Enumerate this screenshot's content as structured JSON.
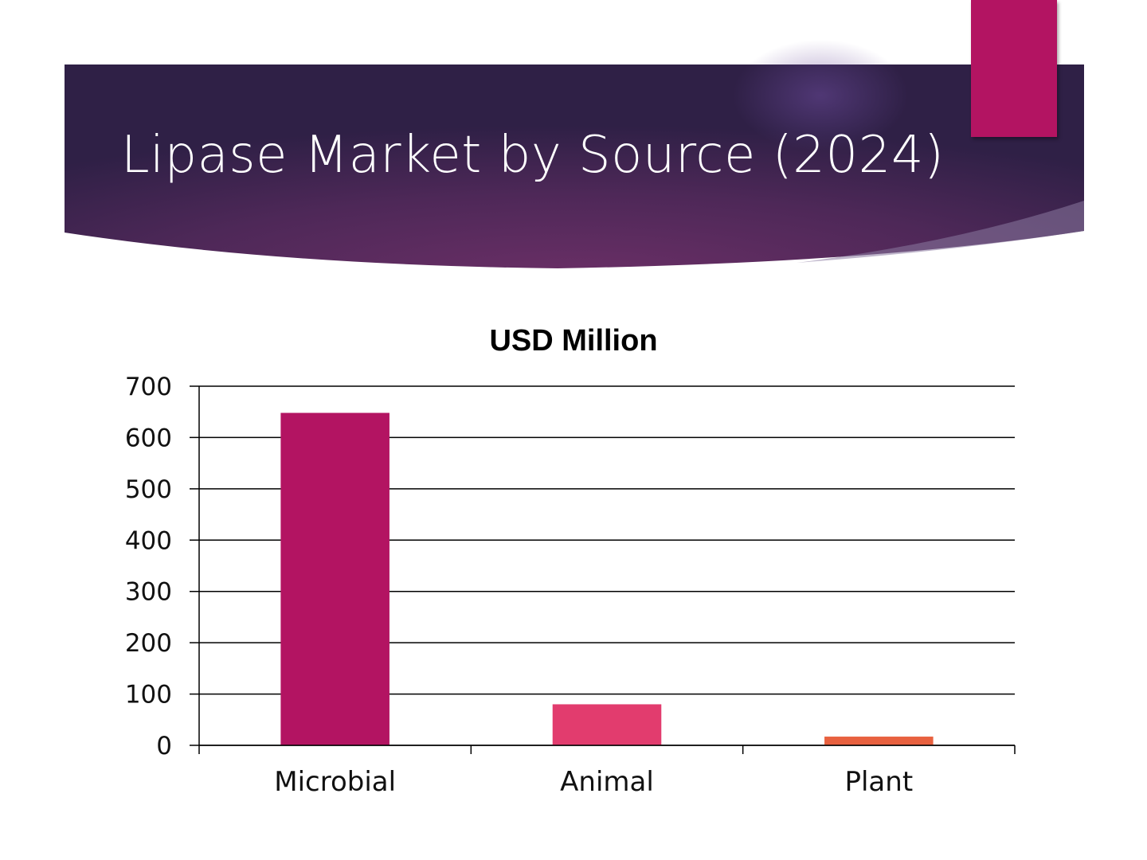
{
  "slide": {
    "title": "Lipase Market by Source (2024)",
    "band_colors": {
      "left": "#2f2046",
      "center": "#6a2f66",
      "right": "#342048"
    },
    "accent_color": "#b31462"
  },
  "chart_data": {
    "type": "bar",
    "title": "USD Million",
    "xlabel": "",
    "ylabel": "",
    "categories": [
      "Microbial",
      "Animal",
      "Plant"
    ],
    "values": [
      648,
      80,
      17
    ],
    "bar_colors": [
      "#b31462",
      "#e23c6e",
      "#e8613f"
    ],
    "ylim": [
      0,
      700
    ],
    "yticks": [
      0,
      100,
      200,
      300,
      400,
      500,
      600,
      700
    ],
    "grid": true,
    "legend": "none"
  }
}
